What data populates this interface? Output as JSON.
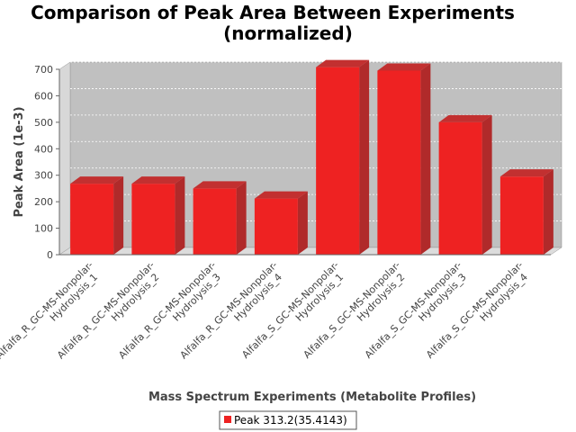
{
  "chart_data": {
    "type": "bar",
    "title": [
      "Comparison of Peak Area Between Experiments",
      "(normalized)"
    ],
    "xlabel": "Mass Spectrum Experiments (Metabolite Profiles)",
    "ylabel": "Peak Area (1e-3)",
    "ylim": [
      0,
      700
    ],
    "yticks": [
      0,
      100,
      200,
      300,
      400,
      500,
      600,
      700
    ],
    "grid": true,
    "legend_position": "bottom",
    "categories": [
      [
        "Alfalfa_R_GC-MS-Nonpolar-",
        "Hydrolysis_1"
      ],
      [
        "Alfalfa_R_GC-MS-Nonpolar-",
        "Hydrolysis_2"
      ],
      [
        "Alfalfa_R_GC-MS-Nonpolar-",
        "Hydrolysis_3"
      ],
      [
        "Alfalfa_R_GC-MS-Nonpolar-",
        "Hydrolysis_4"
      ],
      [
        "Alfalfa_S_GC-MS-Nonpolar-",
        "Hydrolysis_1"
      ],
      [
        "Alfalfa_S_GC-MS-Nonpolar-",
        "Hydrolysis_2"
      ],
      [
        "Alfalfa_S_GC-MS-Nonpolar-",
        "Hydrolysis_3"
      ],
      [
        "Alfalfa_S_GC-MS-Nonpolar-",
        "Hydrolysis_4"
      ]
    ],
    "series": [
      {
        "name": "Peak 313.2(35.4143)",
        "color": "#ee2222",
        "values": [
          268,
          268,
          250,
          212,
          708,
          695,
          500,
          295
        ]
      }
    ]
  }
}
